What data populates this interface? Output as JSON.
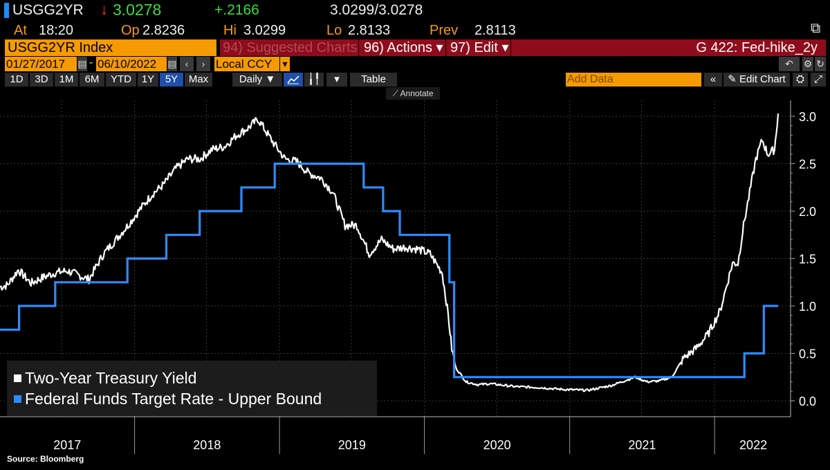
{
  "header": {
    "ticker": "USGG2YR",
    "arrow": "↓",
    "last": "3.0278",
    "change": "+.2166",
    "bidask": "3.0299/3.0278",
    "at_label": "At",
    "at_value": "18:20",
    "op_label": "Op",
    "op_value": "2.8236",
    "hi_label": "Hi",
    "hi_value": "3.0299",
    "lo_label": "Lo",
    "lo_value": "2.8133",
    "prev_label": "Prev",
    "prev_value": "2.8113"
  },
  "toolbar": {
    "security": "USGG2YR Index",
    "suggested": "94) Suggested Charts",
    "actions": "96) Actions ▾",
    "edit": "97) Edit ▾",
    "chart_name": "G 422: Fed-hike_2y",
    "start_date": "01/27/2017",
    "end_date": "06/10/2022",
    "currency": "Local CCY",
    "periods": [
      "1D",
      "3D",
      "1M",
      "6M",
      "YTD",
      "1Y",
      "5Y",
      "Max"
    ],
    "active_period": "5Y",
    "frequency": "Daily ▼",
    "table_label": "Table",
    "add_data_placeholder": "Add Data",
    "edit_chart": "Edit Chart",
    "annotate": "Annotate"
  },
  "colors": {
    "background": "#000000",
    "yield_line": "#ffffff",
    "fed_line": "#2e8bff",
    "orange": "#f59a00",
    "red_bar": "#8f0c1c"
  },
  "chart_data": {
    "type": "line",
    "xlabel": "",
    "ylabel": "",
    "x_ticks": [
      "2017",
      "2018",
      "2019",
      "2020",
      "2021",
      "2022"
    ],
    "y_ticks": [
      "0.0",
      "0.5",
      "1.0",
      "1.5",
      "2.0",
      "2.5",
      "3.0"
    ],
    "ylim": [
      -0.05,
      3.15
    ],
    "xlim": [
      "2017-01-27",
      "2022-06-10"
    ],
    "grid": true,
    "legend_position": "bottom-left",
    "series": [
      {
        "name": "Two-Year Treasury Yield",
        "color": "#ffffff",
        "x": [
          "2017-01-27",
          "2017-02-15",
          "2017-03-14",
          "2017-04-15",
          "2017-05-15",
          "2017-06-15",
          "2017-07-15",
          "2017-08-15",
          "2017-09-08",
          "2017-10-15",
          "2017-11-15",
          "2017-12-15",
          "2018-01-15",
          "2018-02-15",
          "2018-03-15",
          "2018-04-15",
          "2018-05-15",
          "2018-06-15",
          "2018-07-15",
          "2018-08-15",
          "2018-09-15",
          "2018-10-15",
          "2018-11-08",
          "2018-12-15",
          "2019-01-15",
          "2019-02-15",
          "2019-03-15",
          "2019-04-15",
          "2019-05-15",
          "2019-06-15",
          "2019-07-15",
          "2019-08-15",
          "2019-09-15",
          "2019-10-15",
          "2019-11-15",
          "2019-12-15",
          "2020-01-15",
          "2020-02-15",
          "2020-03-01",
          "2020-03-10",
          "2020-03-20",
          "2020-04-15",
          "2020-05-15",
          "2020-06-15",
          "2020-08-15",
          "2020-10-15",
          "2020-12-15",
          "2021-02-15",
          "2021-04-15",
          "2021-06-15",
          "2021-07-15",
          "2021-08-15",
          "2021-09-15",
          "2021-10-15",
          "2021-11-15",
          "2021-12-15",
          "2022-01-15",
          "2022-02-15",
          "2022-03-01",
          "2022-03-15",
          "2022-04-15",
          "2022-05-01",
          "2022-05-15",
          "2022-06-01",
          "2022-06-10"
        ],
        "y": [
          1.2,
          1.22,
          1.38,
          1.24,
          1.3,
          1.35,
          1.37,
          1.32,
          1.28,
          1.55,
          1.7,
          1.85,
          2.02,
          2.18,
          2.28,
          2.45,
          2.55,
          2.55,
          2.65,
          2.68,
          2.8,
          2.88,
          2.97,
          2.73,
          2.55,
          2.52,
          2.4,
          2.35,
          2.2,
          1.85,
          1.85,
          1.55,
          1.7,
          1.6,
          1.62,
          1.6,
          1.55,
          1.35,
          0.9,
          0.55,
          0.35,
          0.2,
          0.17,
          0.18,
          0.15,
          0.14,
          0.12,
          0.11,
          0.16,
          0.25,
          0.2,
          0.21,
          0.25,
          0.45,
          0.55,
          0.7,
          0.95,
          1.45,
          1.45,
          1.85,
          2.55,
          2.75,
          2.6,
          2.65,
          3.03
        ]
      },
      {
        "name": "Federal Funds Target Rate - Upper Bound",
        "color": "#2e8bff",
        "step": true,
        "x": [
          "2017-01-27",
          "2017-03-16",
          "2017-06-15",
          "2017-12-14",
          "2018-03-22",
          "2018-06-14",
          "2018-09-27",
          "2018-12-20",
          "2019-08-01",
          "2019-09-19",
          "2019-10-31",
          "2020-03-04",
          "2020-03-16",
          "2022-03-17",
          "2022-05-05",
          "2022-06-10"
        ],
        "y": [
          0.75,
          1.0,
          1.25,
          1.5,
          1.75,
          2.0,
          2.25,
          2.5,
          2.25,
          2.0,
          1.75,
          1.25,
          0.25,
          0.5,
          1.0,
          1.0
        ]
      }
    ]
  },
  "legend": {
    "yield": "Two-Year Treasury Yield",
    "fed": "Federal Funds Target Rate - Upper Bound"
  },
  "source": "Source: Bloomberg"
}
